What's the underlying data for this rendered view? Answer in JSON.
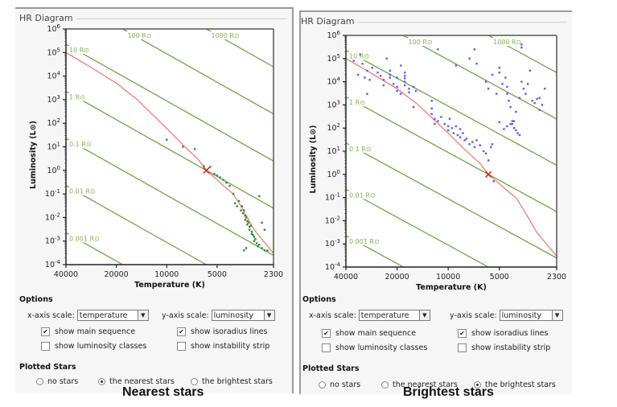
{
  "panels": [
    {
      "id": "nearest",
      "title": "HR Diagram",
      "caption": "Nearest stars",
      "options": {
        "heading": "Options",
        "x_scale_label": "x-axis scale:",
        "x_scale_value": "temperature",
        "y_scale_label": "y-axis scale:",
        "y_scale_value": "luminosity",
        "checkboxes": [
          {
            "label": "show main sequence",
            "checked": true
          },
          {
            "label": "show isoradius lines",
            "checked": true
          },
          {
            "label": "show luminosity classes",
            "checked": false
          },
          {
            "label": "show instability strip",
            "checked": false
          }
        ]
      },
      "plotted": {
        "heading": "Plotted Stars",
        "radios": [
          {
            "label": "no stars",
            "selected": false
          },
          {
            "label": "the nearest stars",
            "selected": true
          },
          {
            "label": "the brightest stars",
            "selected": false
          }
        ]
      }
    },
    {
      "id": "brightest",
      "title": "HR Diagram",
      "caption": "Brightest stars",
      "options": {
        "heading": "Options",
        "x_scale_label": "x-axis scale:",
        "x_scale_value": "temperature",
        "y_scale_label": "y-axis scale:",
        "y_scale_value": "luminosity",
        "checkboxes": [
          {
            "label": "show main sequence",
            "checked": true
          },
          {
            "label": "show isoradius lines",
            "checked": true
          },
          {
            "label": "show luminosity classes",
            "checked": false
          },
          {
            "label": "show instability strip",
            "checked": false
          }
        ]
      },
      "plotted": {
        "heading": "Plotted Stars",
        "radios": [
          {
            "label": "no stars",
            "selected": false
          },
          {
            "label": "the nearest stars",
            "selected": false
          },
          {
            "label": "the brightest stars",
            "selected": true
          }
        ]
      }
    }
  ],
  "chart_data": [
    {
      "type": "scatter",
      "title": "HR Diagram — Nearest stars",
      "xlabel": "Temperature (K)",
      "ylabel": "Luminosity (L⊙)",
      "x_scale": "log, reversed",
      "y_scale": "log",
      "xlim": [
        40000,
        2300
      ],
      "ylim": [
        0.0001,
        1000000
      ],
      "x_ticks": [
        40000,
        20000,
        10000,
        5000,
        2300
      ],
      "x_tick_labels": [
        "40000",
        "20000",
        "10000",
        "5000",
        "2300"
      ],
      "y_ticks": [
        -4,
        -3,
        -2,
        -1,
        0,
        1,
        2,
        3,
        4,
        5,
        6
      ],
      "y_tick_labels": [
        "10-4",
        "10-3",
        "10-2",
        "10-1",
        "100",
        "101",
        "102",
        "103",
        "104",
        "105",
        "106"
      ],
      "isoradius_lines": [
        {
          "radius": 0.001,
          "label": "0.001 R⊙"
        },
        {
          "radius": 0.01,
          "label": "0.01 R⊙"
        },
        {
          "radius": 0.1,
          "label": "0.1 R⊙"
        },
        {
          "radius": 1,
          "label": "1 R⊙"
        },
        {
          "radius": 10,
          "label": "10 R⊙"
        },
        {
          "radius": 100,
          "label": "100 R⊙"
        },
        {
          "radius": 1000,
          "label": "1000 R⊙"
        }
      ],
      "main_sequence": [
        [
          40000,
          100000
        ],
        [
          30000,
          30000
        ],
        [
          20000,
          5000
        ],
        [
          15000,
          1000
        ],
        [
          10000,
          60
        ],
        [
          8000,
          12
        ],
        [
          6500,
          3
        ],
        [
          5800,
          1
        ],
        [
          5000,
          0.4
        ],
        [
          4500,
          0.2
        ],
        [
          4000,
          0.1
        ],
        [
          3600,
          0.03
        ],
        [
          3300,
          0.01
        ],
        [
          3000,
          0.003
        ],
        [
          2700,
          0.0012
        ],
        [
          2300,
          0.0003
        ]
      ],
      "sun": {
        "temperature": 5800,
        "luminosity": 1,
        "marker": "x",
        "color": "#e02020"
      },
      "series": [
        {
          "name": "nearest stars",
          "color": "#2e8b2e",
          "points": [
            [
              10000,
              20
            ],
            [
              8000,
              10
            ],
            [
              6800,
              8
            ],
            [
              6000,
              1.5
            ],
            [
              5500,
              1.4
            ],
            [
              5200,
              0.7
            ],
            [
              5000,
              0.6
            ],
            [
              4800,
              0.5
            ],
            [
              4600,
              0.4
            ],
            [
              4400,
              0.3
            ],
            [
              4200,
              0.22
            ],
            [
              4000,
              0.1
            ],
            [
              3900,
              0.04
            ],
            [
              3800,
              0.03
            ],
            [
              3700,
              0.05
            ],
            [
              3600,
              0.02
            ],
            [
              3550,
              0.03
            ],
            [
              3500,
              0.015
            ],
            [
              3450,
              0.02
            ],
            [
              3400,
              0.012
            ],
            [
              3400,
              0.008
            ],
            [
              3350,
              0.01
            ],
            [
              3300,
              0.007
            ],
            [
              3300,
              0.005
            ],
            [
              3250,
              0.006
            ],
            [
              3200,
              0.004
            ],
            [
              3200,
              0.003
            ],
            [
              3150,
              0.0045
            ],
            [
              3100,
              0.0025
            ],
            [
              3100,
              0.002
            ],
            [
              3050,
              0.0018
            ],
            [
              3000,
              0.0015
            ],
            [
              3000,
              0.001
            ],
            [
              2950,
              0.0012
            ],
            [
              2900,
              0.0008
            ],
            [
              2850,
              0.0006
            ],
            [
              2800,
              0.0007
            ],
            [
              2700,
              0.0005
            ],
            [
              2600,
              0.0004
            ],
            [
              2500,
              0.0004
            ],
            [
              2800,
              0.08
            ],
            [
              2700,
              0.006
            ],
            [
              2600,
              0.003
            ],
            [
              3450,
              0.0004
            ],
            [
              3350,
              0.0005
            ]
          ]
        }
      ]
    },
    {
      "type": "scatter",
      "title": "HR Diagram — Brightest stars",
      "xlabel": "Temperature (K)",
      "ylabel": "Luminosity (L⊙)",
      "x_scale": "log, reversed",
      "y_scale": "log",
      "xlim": [
        40000,
        2300
      ],
      "ylim": [
        0.0001,
        1000000
      ],
      "x_ticks": [
        40000,
        20000,
        10000,
        5000,
        2300
      ],
      "x_tick_labels": [
        "40000",
        "20000",
        "10000",
        "5000",
        "2300"
      ],
      "y_ticks": [
        -4,
        -3,
        -2,
        -1,
        0,
        1,
        2,
        3,
        4,
        5,
        6
      ],
      "y_tick_labels": [
        "10-4",
        "10-3",
        "10-2",
        "10-1",
        "100",
        "101",
        "102",
        "103",
        "104",
        "105",
        "106"
      ],
      "isoradius_lines": [
        {
          "radius": 0.001,
          "label": "0.001 R⊙"
        },
        {
          "radius": 0.01,
          "label": "0.01 R⊙"
        },
        {
          "radius": 0.1,
          "label": "0.1 R⊙"
        },
        {
          "radius": 1,
          "label": "1 R⊙"
        },
        {
          "radius": 10,
          "label": "10 R⊙"
        },
        {
          "radius": 100,
          "label": "100 R⊙"
        },
        {
          "radius": 1000,
          "label": "1000 R⊙"
        }
      ],
      "main_sequence": [
        [
          40000,
          100000
        ],
        [
          30000,
          30000
        ],
        [
          20000,
          5000
        ],
        [
          15000,
          1000
        ],
        [
          10000,
          60
        ],
        [
          8000,
          12
        ],
        [
          6500,
          3
        ],
        [
          5800,
          1
        ],
        [
          5000,
          0.4
        ],
        [
          4500,
          0.2
        ],
        [
          4000,
          0.1
        ],
        [
          3600,
          0.03
        ],
        [
          3300,
          0.01
        ],
        [
          3000,
          0.003
        ],
        [
          2700,
          0.0012
        ],
        [
          2300,
          0.0003
        ]
      ],
      "sun": {
        "temperature": 5800,
        "luminosity": 1,
        "marker": "x",
        "color": "#e02020"
      },
      "series": [
        {
          "name": "brightest stars",
          "color": "#5a5aff",
          "points": [
            [
              33000,
              150000
            ],
            [
              36000,
              80000
            ],
            [
              32000,
              60000
            ],
            [
              30000,
              30000
            ],
            [
              34000,
              20000
            ],
            [
              31000,
              15000
            ],
            [
              29000,
              12000
            ],
            [
              28000,
              40000
            ],
            [
              26000,
              25000
            ],
            [
              25000,
              18000
            ],
            [
              24000,
              12000
            ],
            [
              23000,
              100000
            ],
            [
              22000,
              30000
            ],
            [
              22000,
              20000
            ],
            [
              22000,
              15000
            ],
            [
              21000,
              8000
            ],
            [
              20000,
              6000
            ],
            [
              20000,
              4000
            ],
            [
              19000,
              3000
            ],
            [
              19000,
              50000
            ],
            [
              18000,
              25000
            ],
            [
              18000,
              18000
            ],
            [
              18000,
              14000
            ],
            [
              18000,
              10000
            ],
            [
              18000,
              7000
            ],
            [
              17000,
              5000
            ],
            [
              17000,
              3500
            ],
            [
              16000,
              6000
            ],
            [
              15500,
              4000
            ],
            [
              30000,
              3000
            ],
            [
              16000,
              800
            ],
            [
              20000,
              15000
            ],
            [
              24000,
              7000
            ],
            [
              12500,
              1500
            ],
            [
              12500,
              700
            ],
            [
              12500,
              400
            ],
            [
              12000,
              250
            ],
            [
              12000,
              150
            ],
            [
              11500,
              200
            ],
            [
              11000,
              300
            ],
            [
              10500,
              150
            ],
            [
              10000,
              120
            ],
            [
              10000,
              80
            ],
            [
              9800,
              250
            ],
            [
              9500,
              100
            ],
            [
              9300,
              60
            ],
            [
              9000,
              120
            ],
            [
              8800,
              50
            ],
            [
              8500,
              40
            ],
            [
              8500,
              90
            ],
            [
              8200,
              60
            ],
            [
              8000,
              30
            ],
            [
              7800,
              35
            ],
            [
              7500,
              20
            ],
            [
              7200,
              25
            ],
            [
              7000,
              15
            ],
            [
              6800,
              30
            ],
            [
              6500,
              18
            ],
            [
              6200,
              10
            ],
            [
              6000,
              8
            ],
            [
              5800,
              4
            ],
            [
              5500,
              20
            ],
            [
              5600,
              15
            ],
            [
              5400,
              0.5
            ],
            [
              11500,
              250000
            ],
            [
              9000,
              50000
            ],
            [
              7500,
              100000
            ],
            [
              7000,
              250000
            ],
            [
              6800,
              60000
            ],
            [
              6000,
              10000
            ],
            [
              5800,
              5000
            ],
            [
              5500,
              20000
            ],
            [
              5200,
              3000
            ],
            [
              5000,
              40000
            ],
            [
              5000,
              25000
            ],
            [
              4800,
              8000
            ],
            [
              4600,
              15000
            ],
            [
              4500,
              6000
            ],
            [
              4500,
              3000
            ],
            [
              4400,
              1500
            ],
            [
              4300,
              800
            ],
            [
              4200,
              200
            ],
            [
              4200,
              150
            ],
            [
              4100,
              100
            ],
            [
              4000,
              80
            ],
            [
              3900,
              60
            ],
            [
              3800,
              50
            ],
            [
              4000,
              500
            ],
            [
              3800,
              2000
            ],
            [
              3700,
              10000
            ],
            [
              3600,
              5000
            ],
            [
              3500,
              3000
            ],
            [
              3400,
              8000
            ],
            [
              3300,
              30000
            ],
            [
              3200,
              1500
            ],
            [
              3100,
              1200
            ],
            [
              3000,
              1800
            ],
            [
              2900,
              2000
            ],
            [
              2800,
              1000
            ],
            [
              2700,
              5000
            ],
            [
              4500,
              120
            ],
            [
              4300,
              150
            ],
            [
              4100,
              200
            ],
            [
              5000,
              180
            ],
            [
              4700,
              90
            ],
            [
              3700,
              400000
            ],
            [
              3700,
              300000
            ],
            [
              2900,
              600
            ]
          ]
        }
      ]
    }
  ]
}
